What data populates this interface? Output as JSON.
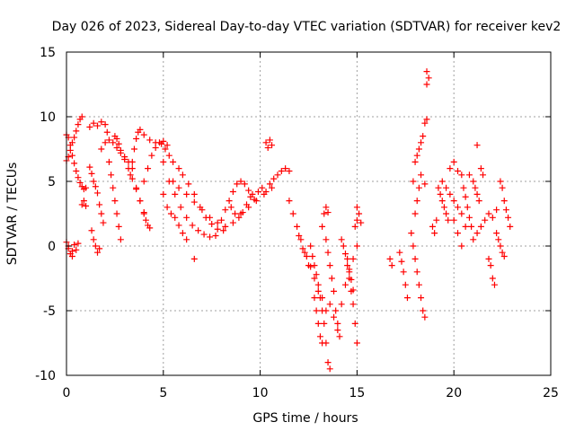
{
  "chart_data": {
    "type": "scatter",
    "title": "Day 026 of 2023, Sidereal Day-to-day VTEC variation (SDTVAR) for receiver kev2",
    "xlabel": "GPS time / hours",
    "ylabel": "SDTVAR / TECUs",
    "xlim": [
      0,
      25
    ],
    "ylim": [
      -10,
      15
    ],
    "xticks": [
      0,
      5,
      10,
      15,
      20,
      25
    ],
    "yticks": [
      -10,
      -5,
      0,
      5,
      10,
      15
    ],
    "grid": true,
    "marker": "plus",
    "color": "#ff0000",
    "series": [
      {
        "name": "SDTVAR",
        "points": [
          [
            0.0,
            8.6
          ],
          [
            0.1,
            8.4
          ],
          [
            0.2,
            7.8
          ],
          [
            0.3,
            7.0
          ],
          [
            0.4,
            6.4
          ],
          [
            0.5,
            5.8
          ],
          [
            0.6,
            5.3
          ],
          [
            0.7,
            4.9
          ],
          [
            0.8,
            4.6
          ],
          [
            0.9,
            4.4
          ],
          [
            1.0,
            4.5
          ],
          [
            0.0,
            6.6
          ],
          [
            0.1,
            6.9
          ],
          [
            0.2,
            7.4
          ],
          [
            0.3,
            8.0
          ],
          [
            0.4,
            8.4
          ],
          [
            0.5,
            8.9
          ],
          [
            0.6,
            9.4
          ],
          [
            0.7,
            9.8
          ],
          [
            0.8,
            10.0
          ],
          [
            0.0,
            0.3
          ],
          [
            0.1,
            -0.2
          ],
          [
            0.2,
            -0.6
          ],
          [
            0.3,
            -0.4
          ],
          [
            0.4,
            0.1
          ],
          [
            0.5,
            -0.3
          ],
          [
            0.6,
            0.2
          ],
          [
            0.1,
            0.0
          ],
          [
            0.3,
            -0.8
          ],
          [
            0.8,
            3.2
          ],
          [
            0.9,
            3.5
          ],
          [
            1.0,
            3.1
          ],
          [
            1.2,
            9.2
          ],
          [
            1.4,
            9.5
          ],
          [
            1.6,
            9.3
          ],
          [
            1.8,
            9.6
          ],
          [
            2.0,
            9.4
          ],
          [
            2.1,
            8.8
          ],
          [
            1.2,
            6.1
          ],
          [
            1.3,
            5.6
          ],
          [
            1.4,
            5.0
          ],
          [
            1.5,
            4.6
          ],
          [
            1.6,
            4.1
          ],
          [
            1.7,
            3.2
          ],
          [
            1.8,
            2.5
          ],
          [
            1.9,
            1.8
          ],
          [
            1.3,
            1.2
          ],
          [
            1.4,
            0.5
          ],
          [
            1.5,
            0.0
          ],
          [
            1.6,
            -0.5
          ],
          [
            1.7,
            -0.2
          ],
          [
            1.8,
            7.5
          ],
          [
            2.0,
            8.0
          ],
          [
            2.2,
            8.2
          ],
          [
            2.4,
            8.0
          ],
          [
            2.6,
            7.6
          ],
          [
            2.8,
            7.2
          ],
          [
            3.0,
            6.9
          ],
          [
            3.2,
            6.5
          ],
          [
            3.4,
            6.0
          ],
          [
            2.2,
            6.5
          ],
          [
            2.3,
            5.5
          ],
          [
            2.4,
            4.5
          ],
          [
            2.5,
            3.5
          ],
          [
            2.6,
            2.5
          ],
          [
            2.7,
            1.5
          ],
          [
            2.8,
            0.5
          ],
          [
            2.5,
            8.5
          ],
          [
            2.6,
            8.3
          ],
          [
            2.7,
            7.9
          ],
          [
            2.8,
            7.4
          ],
          [
            3.0,
            6.7
          ],
          [
            3.2,
            6.0
          ],
          [
            3.4,
            5.2
          ],
          [
            3.6,
            4.4
          ],
          [
            3.8,
            3.5
          ],
          [
            4.0,
            2.5
          ],
          [
            3.3,
            5.5
          ],
          [
            3.4,
            6.5
          ],
          [
            3.5,
            7.5
          ],
          [
            3.6,
            8.3
          ],
          [
            3.7,
            8.8
          ],
          [
            3.8,
            9.0
          ],
          [
            4.0,
            8.6
          ],
          [
            3.6,
            4.5
          ],
          [
            3.8,
            3.5
          ],
          [
            4.0,
            2.6
          ],
          [
            4.1,
            2.0
          ],
          [
            4.2,
            1.6
          ],
          [
            4.3,
            1.4
          ],
          [
            4.0,
            5.0
          ],
          [
            4.2,
            6.0
          ],
          [
            4.4,
            7.0
          ],
          [
            4.6,
            7.6
          ],
          [
            4.8,
            8.0
          ],
          [
            5.0,
            8.1
          ],
          [
            5.2,
            7.8
          ],
          [
            4.3,
            8.2
          ],
          [
            4.6,
            8.0
          ],
          [
            4.9,
            7.9
          ],
          [
            5.1,
            7.5
          ],
          [
            5.3,
            7.0
          ],
          [
            5.5,
            6.5
          ],
          [
            5.8,
            6.0
          ],
          [
            6.0,
            5.5
          ],
          [
            6.3,
            4.8
          ],
          [
            6.6,
            4.0
          ],
          [
            6.9,
            3.0
          ],
          [
            7.2,
            2.2
          ],
          [
            7.5,
            1.7
          ],
          [
            7.8,
            1.3
          ],
          [
            8.1,
            1.2
          ],
          [
            5.0,
            6.5
          ],
          [
            5.3,
            5.0
          ],
          [
            5.6,
            4.0
          ],
          [
            5.9,
            3.0
          ],
          [
            6.2,
            2.2
          ],
          [
            6.5,
            1.6
          ],
          [
            6.8,
            1.2
          ],
          [
            7.1,
            0.9
          ],
          [
            7.4,
            0.7
          ],
          [
            7.7,
            0.8
          ],
          [
            5.0,
            4.0
          ],
          [
            5.2,
            3.0
          ],
          [
            5.4,
            2.5
          ],
          [
            5.6,
            2.2
          ],
          [
            5.8,
            1.6
          ],
          [
            6.0,
            1.0
          ],
          [
            6.2,
            0.5
          ],
          [
            5.5,
            5.0
          ],
          [
            5.8,
            4.5
          ],
          [
            6.2,
            4.0
          ],
          [
            6.6,
            3.4
          ],
          [
            7.0,
            2.8
          ],
          [
            7.4,
            2.2
          ],
          [
            7.8,
            1.8
          ],
          [
            8.2,
            1.5
          ],
          [
            8.6,
            1.8
          ],
          [
            9.0,
            2.5
          ],
          [
            9.4,
            3.0
          ],
          [
            9.8,
            3.5
          ],
          [
            10.2,
            4.0
          ],
          [
            10.6,
            4.5
          ],
          [
            6.6,
            -1.0
          ],
          [
            8.0,
            2.0
          ],
          [
            8.2,
            2.8
          ],
          [
            8.4,
            3.5
          ],
          [
            8.6,
            4.2
          ],
          [
            8.8,
            4.8
          ],
          [
            9.0,
            5.0
          ],
          [
            9.2,
            4.8
          ],
          [
            9.4,
            4.3
          ],
          [
            9.6,
            4.0
          ],
          [
            8.5,
            3.0
          ],
          [
            8.7,
            2.5
          ],
          [
            8.9,
            2.2
          ],
          [
            9.1,
            2.6
          ],
          [
            9.3,
            3.2
          ],
          [
            9.5,
            3.8
          ],
          [
            9.7,
            3.6
          ],
          [
            9.9,
            4.2
          ],
          [
            10.1,
            4.5
          ],
          [
            10.3,
            4.2
          ],
          [
            10.5,
            4.8
          ],
          [
            10.7,
            5.2
          ],
          [
            10.9,
            5.5
          ],
          [
            11.1,
            5.8
          ],
          [
            11.3,
            6.0
          ],
          [
            11.5,
            5.8
          ],
          [
            10.3,
            8.0
          ],
          [
            10.4,
            7.6
          ],
          [
            10.5,
            8.2
          ],
          [
            10.6,
            7.8
          ],
          [
            11.5,
            3.5
          ],
          [
            11.7,
            2.5
          ],
          [
            11.9,
            1.5
          ],
          [
            12.1,
            0.5
          ],
          [
            12.3,
            -0.5
          ],
          [
            12.5,
            -1.5
          ],
          [
            12.0,
            0.8
          ],
          [
            12.2,
            -0.2
          ],
          [
            12.4,
            -0.8
          ],
          [
            12.6,
            -1.6
          ],
          [
            12.8,
            -2.5
          ],
          [
            13.0,
            -3.5
          ],
          [
            13.2,
            -4.0
          ],
          [
            13.4,
            -5.0
          ],
          [
            12.6,
            0.0
          ],
          [
            12.7,
            -0.8
          ],
          [
            12.8,
            -1.5
          ],
          [
            12.9,
            -2.2
          ],
          [
            13.0,
            -3.0
          ],
          [
            13.1,
            -4.0
          ],
          [
            13.2,
            -5.0
          ],
          [
            13.3,
            -6.0
          ],
          [
            13.4,
            -7.5
          ],
          [
            13.5,
            -9.0
          ],
          [
            13.6,
            -9.5
          ],
          [
            12.8,
            -4.0
          ],
          [
            12.9,
            -5.0
          ],
          [
            13.0,
            -6.0
          ],
          [
            13.1,
            -7.0
          ],
          [
            13.2,
            -7.5
          ],
          [
            13.2,
            1.5
          ],
          [
            13.3,
            2.5
          ],
          [
            13.4,
            3.0
          ],
          [
            13.5,
            2.6
          ],
          [
            13.4,
            0.5
          ],
          [
            13.5,
            -0.5
          ],
          [
            13.6,
            -1.5
          ],
          [
            13.7,
            -2.5
          ],
          [
            13.8,
            -3.5
          ],
          [
            13.9,
            -5.0
          ],
          [
            14.0,
            -6.5
          ],
          [
            14.1,
            -7.0
          ],
          [
            13.6,
            -4.5
          ],
          [
            13.8,
            -5.5
          ],
          [
            14.0,
            -6.0
          ],
          [
            14.2,
            -4.5
          ],
          [
            14.4,
            -3.0
          ],
          [
            14.6,
            -2.0
          ],
          [
            14.8,
            -1.0
          ],
          [
            15.0,
            0.0
          ],
          [
            14.2,
            0.5
          ],
          [
            14.3,
            0.0
          ],
          [
            14.4,
            -0.6
          ],
          [
            14.5,
            -1.5
          ],
          [
            14.6,
            -2.5
          ],
          [
            14.7,
            -3.5
          ],
          [
            14.8,
            -4.5
          ],
          [
            14.9,
            -6.0
          ],
          [
            15.0,
            -7.5
          ],
          [
            14.5,
            -1.0
          ],
          [
            14.6,
            -1.8
          ],
          [
            14.7,
            -2.6
          ],
          [
            14.8,
            -3.4
          ],
          [
            14.9,
            1.5
          ],
          [
            15.0,
            2.0
          ],
          [
            15.0,
            3.0
          ],
          [
            15.1,
            2.5
          ],
          [
            15.2,
            1.8
          ],
          [
            16.7,
            -1.0
          ],
          [
            16.8,
            -1.5
          ],
          [
            17.2,
            -0.5
          ],
          [
            17.3,
            -1.2
          ],
          [
            17.4,
            -2.0
          ],
          [
            17.5,
            -3.0
          ],
          [
            17.6,
            -4.0
          ],
          [
            17.9,
            5.0
          ],
          [
            17.8,
            1.0
          ],
          [
            17.9,
            0.0
          ],
          [
            18.0,
            -1.0
          ],
          [
            18.1,
            -2.0
          ],
          [
            18.2,
            -3.0
          ],
          [
            18.3,
            -4.0
          ],
          [
            18.4,
            -5.0
          ],
          [
            18.5,
            -5.5
          ],
          [
            18.0,
            2.5
          ],
          [
            18.1,
            3.5
          ],
          [
            18.2,
            4.5
          ],
          [
            18.3,
            5.5
          ],
          [
            18.0,
            6.5
          ],
          [
            18.1,
            7.0
          ],
          [
            18.2,
            7.5
          ],
          [
            18.3,
            8.0
          ],
          [
            18.4,
            8.5
          ],
          [
            18.5,
            9.5
          ],
          [
            18.6,
            9.8
          ],
          [
            18.5,
            4.8
          ],
          [
            18.6,
            12.5
          ],
          [
            18.7,
            13.0
          ],
          [
            18.6,
            13.5
          ],
          [
            18.9,
            1.5
          ],
          [
            19.0,
            1.0
          ],
          [
            19.1,
            2.0
          ],
          [
            19.2,
            4.5
          ],
          [
            19.3,
            4.0
          ],
          [
            19.4,
            3.5
          ],
          [
            19.5,
            3.0
          ],
          [
            19.6,
            2.5
          ],
          [
            19.7,
            2.0
          ],
          [
            19.4,
            5.0
          ],
          [
            19.6,
            4.5
          ],
          [
            19.8,
            4.0
          ],
          [
            20.0,
            3.5
          ],
          [
            20.2,
            3.0
          ],
          [
            20.4,
            2.5
          ],
          [
            19.8,
            6.0
          ],
          [
            20.0,
            6.5
          ],
          [
            20.2,
            5.8
          ],
          [
            20.4,
            5.5
          ],
          [
            20.0,
            2.0
          ],
          [
            20.2,
            1.0
          ],
          [
            20.4,
            0.0
          ],
          [
            20.6,
            1.5
          ],
          [
            20.5,
            4.5
          ],
          [
            20.6,
            3.8
          ],
          [
            20.7,
            3.0
          ],
          [
            20.8,
            2.2
          ],
          [
            20.9,
            1.5
          ],
          [
            20.8,
            5.5
          ],
          [
            21.0,
            5.0
          ],
          [
            21.1,
            4.5
          ],
          [
            21.2,
            4.0
          ],
          [
            21.3,
            3.5
          ],
          [
            21.2,
            7.8
          ],
          [
            21.4,
            6.0
          ],
          [
            21.5,
            5.5
          ],
          [
            21.0,
            0.5
          ],
          [
            21.2,
            1.0
          ],
          [
            21.4,
            1.5
          ],
          [
            21.6,
            2.0
          ],
          [
            21.8,
            2.5
          ],
          [
            22.0,
            2.2
          ],
          [
            22.2,
            2.8
          ],
          [
            21.8,
            -1.0
          ],
          [
            21.9,
            -1.5
          ],
          [
            22.0,
            -2.5
          ],
          [
            22.1,
            -3.0
          ],
          [
            22.2,
            1.0
          ],
          [
            22.3,
            0.5
          ],
          [
            22.4,
            0.0
          ],
          [
            22.5,
            -0.5
          ],
          [
            22.6,
            -0.8
          ],
          [
            22.4,
            5.0
          ],
          [
            22.5,
            4.5
          ],
          [
            22.6,
            3.5
          ],
          [
            22.7,
            2.8
          ],
          [
            22.8,
            2.2
          ],
          [
            22.9,
            1.5
          ]
        ]
      }
    ]
  }
}
